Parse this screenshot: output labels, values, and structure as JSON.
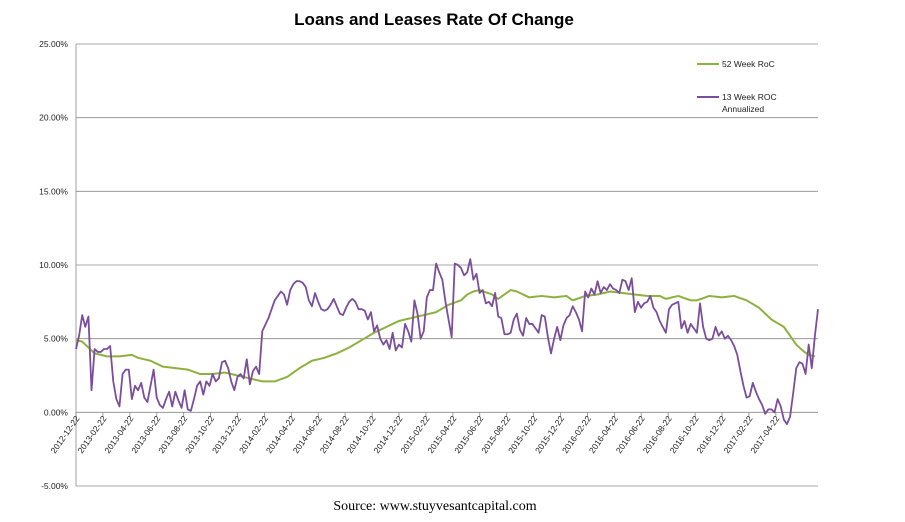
{
  "chart_data": {
    "type": "line",
    "title": "Loans and Leases Rate Of Change",
    "source": "Source: www.stuyvesantcapital.com",
    "xlabel": "",
    "ylabel": "",
    "ylim": [
      -5,
      25
    ],
    "y_ticks": [
      25,
      20,
      15,
      10,
      5,
      0,
      -5
    ],
    "y_tick_labels": [
      "25.00%",
      "20.00%",
      "15.00%",
      "10.00%",
      "5.00%",
      "0.00%",
      "-5.00%"
    ],
    "x_tick_labels": [
      "2012-12-22",
      "2013-02-22",
      "2013-04-22",
      "2013-06-22",
      "2013-08-22",
      "2013-10-22",
      "2013-12-22",
      "2014-02-22",
      "2014-04-22",
      "2014-06-22",
      "2014-08-22",
      "2014-10-22",
      "2014-12-22",
      "2015-02-22",
      "2015-04-22",
      "2015-06-22",
      "2015-08-22",
      "2015-10-22",
      "2015-12-22",
      "2016-02-22",
      "2016-04-22",
      "2016-06-22",
      "2016-08-22",
      "2016-10-22",
      "2016-12-22",
      "2017-02-22",
      "2017-04-22"
    ],
    "weeks": 239,
    "series": [
      {
        "name": "52 Week RoC",
        "color": "#8db13f",
        "keypoints": [
          [
            0,
            4.9
          ],
          [
            2,
            4.8
          ],
          [
            4,
            4.4
          ],
          [
            6,
            4.0
          ],
          [
            8,
            3.9
          ],
          [
            10,
            3.8
          ],
          [
            14,
            3.8
          ],
          [
            18,
            3.9
          ],
          [
            20,
            3.7
          ],
          [
            24,
            3.5
          ],
          [
            28,
            3.1
          ],
          [
            32,
            3.0
          ],
          [
            36,
            2.9
          ],
          [
            40,
            2.6
          ],
          [
            44,
            2.6
          ],
          [
            48,
            2.7
          ],
          [
            52,
            2.5
          ],
          [
            56,
            2.3
          ],
          [
            60,
            2.1
          ],
          [
            64,
            2.1
          ],
          [
            68,
            2.4
          ],
          [
            72,
            3.0
          ],
          [
            76,
            3.5
          ],
          [
            80,
            3.7
          ],
          [
            84,
            4.0
          ],
          [
            88,
            4.4
          ],
          [
            92,
            4.9
          ],
          [
            96,
            5.4
          ],
          [
            100,
            5.8
          ],
          [
            104,
            6.2
          ],
          [
            108,
            6.4
          ],
          [
            112,
            6.6
          ],
          [
            116,
            6.8
          ],
          [
            120,
            7.3
          ],
          [
            124,
            7.6
          ],
          [
            126,
            8.0
          ],
          [
            128,
            8.2
          ],
          [
            130,
            8.3
          ],
          [
            134,
            8.0
          ],
          [
            136,
            7.7
          ],
          [
            138,
            8.0
          ],
          [
            140,
            8.3
          ],
          [
            142,
            8.2
          ],
          [
            146,
            7.8
          ],
          [
            150,
            7.9
          ],
          [
            154,
            7.8
          ],
          [
            158,
            7.9
          ],
          [
            160,
            7.6
          ],
          [
            164,
            7.9
          ],
          [
            168,
            8.0
          ],
          [
            172,
            8.2
          ],
          [
            176,
            8.1
          ],
          [
            180,
            8.0
          ],
          [
            184,
            7.9
          ],
          [
            188,
            7.9
          ],
          [
            190,
            7.7
          ],
          [
            194,
            7.9
          ],
          [
            198,
            7.6
          ],
          [
            200,
            7.6
          ],
          [
            204,
            7.9
          ],
          [
            208,
            7.8
          ],
          [
            212,
            7.9
          ],
          [
            216,
            7.6
          ],
          [
            220,
            7.1
          ],
          [
            224,
            6.3
          ],
          [
            228,
            5.8
          ],
          [
            230,
            5.2
          ],
          [
            232,
            4.6
          ],
          [
            234,
            4.2
          ],
          [
            236,
            3.9
          ],
          [
            238,
            3.8
          ]
        ]
      },
      {
        "name": "13 Week ROC Annualized",
        "color": "#7b4e9c",
        "keypoints": [
          [
            0,
            4.3
          ],
          [
            1,
            5.2
          ],
          [
            2,
            6.6
          ],
          [
            3,
            5.8
          ],
          [
            4,
            6.5
          ],
          [
            5,
            1.5
          ],
          [
            6,
            4.3
          ],
          [
            7,
            4.1
          ],
          [
            8,
            4.1
          ],
          [
            9,
            4.3
          ],
          [
            10,
            4.3
          ],
          [
            11,
            4.5
          ],
          [
            12,
            2.1
          ],
          [
            13,
            0.9
          ],
          [
            14,
            0.4
          ],
          [
            15,
            2.6
          ],
          [
            16,
            2.9
          ],
          [
            17,
            2.9
          ],
          [
            18,
            0.9
          ],
          [
            19,
            1.8
          ],
          [
            20,
            1.5
          ],
          [
            21,
            2.0
          ],
          [
            22,
            1.0
          ],
          [
            23,
            0.7
          ],
          [
            24,
            1.8
          ],
          [
            25,
            2.9
          ],
          [
            26,
            1.0
          ],
          [
            27,
            0.5
          ],
          [
            28,
            0.3
          ],
          [
            29,
            0.9
          ],
          [
            30,
            1.4
          ],
          [
            31,
            0.4
          ],
          [
            32,
            1.4
          ],
          [
            33,
            0.8
          ],
          [
            34,
            0.3
          ],
          [
            35,
            1.5
          ],
          [
            36,
            0.2
          ],
          [
            37,
            0.1
          ],
          [
            38,
            0.9
          ],
          [
            39,
            1.8
          ],
          [
            40,
            2.1
          ],
          [
            41,
            1.2
          ],
          [
            42,
            2.1
          ],
          [
            43,
            1.8
          ],
          [
            44,
            2.6
          ],
          [
            45,
            2.1
          ],
          [
            46,
            2.3
          ],
          [
            47,
            3.4
          ],
          [
            48,
            3.5
          ],
          [
            49,
            3.0
          ],
          [
            50,
            2.1
          ],
          [
            51,
            1.5
          ],
          [
            52,
            2.4
          ],
          [
            53,
            2.6
          ],
          [
            54,
            2.3
          ],
          [
            55,
            3.6
          ],
          [
            56,
            1.9
          ],
          [
            57,
            2.8
          ],
          [
            58,
            3.1
          ],
          [
            59,
            2.6
          ],
          [
            60,
            5.5
          ],
          [
            62,
            6.4
          ],
          [
            64,
            7.6
          ],
          [
            66,
            8.2
          ],
          [
            67,
            8.0
          ],
          [
            68,
            7.3
          ],
          [
            69,
            8.3
          ],
          [
            70,
            8.7
          ],
          [
            71,
            8.9
          ],
          [
            72,
            8.9
          ],
          [
            73,
            8.8
          ],
          [
            74,
            8.5
          ],
          [
            75,
            7.6
          ],
          [
            76,
            7.2
          ],
          [
            77,
            8.1
          ],
          [
            78,
            7.5
          ],
          [
            79,
            7.0
          ],
          [
            80,
            6.9
          ],
          [
            81,
            7.0
          ],
          [
            82,
            7.3
          ],
          [
            83,
            7.7
          ],
          [
            84,
            7.2
          ],
          [
            85,
            6.7
          ],
          [
            86,
            6.6
          ],
          [
            87,
            7.1
          ],
          [
            88,
            7.5
          ],
          [
            89,
            7.7
          ],
          [
            90,
            7.5
          ],
          [
            91,
            7.0
          ],
          [
            92,
            7.0
          ],
          [
            93,
            6.9
          ],
          [
            94,
            6.3
          ],
          [
            95,
            6.8
          ],
          [
            96,
            5.5
          ],
          [
            97,
            5.9
          ],
          [
            98,
            5.0
          ],
          [
            99,
            4.6
          ],
          [
            100,
            4.9
          ],
          [
            101,
            4.3
          ],
          [
            102,
            5.4
          ],
          [
            103,
            4.2
          ],
          [
            104,
            4.6
          ],
          [
            105,
            4.4
          ],
          [
            106,
            6.0
          ],
          [
            107,
            5.5
          ],
          [
            108,
            4.8
          ],
          [
            109,
            7.6
          ],
          [
            110,
            6.7
          ],
          [
            111,
            5.0
          ],
          [
            112,
            5.5
          ],
          [
            113,
            7.8
          ],
          [
            114,
            8.3
          ],
          [
            115,
            8.3
          ],
          [
            116,
            10.1
          ],
          [
            117,
            9.5
          ],
          [
            118,
            9.0
          ],
          [
            119,
            7.5
          ],
          [
            120,
            6.3
          ],
          [
            121,
            5.1
          ],
          [
            122,
            10.1
          ],
          [
            123,
            10.0
          ],
          [
            124,
            9.8
          ],
          [
            125,
            9.3
          ],
          [
            126,
            9.5
          ],
          [
            127,
            10.4
          ],
          [
            128,
            9.0
          ],
          [
            129,
            9.4
          ],
          [
            130,
            8.1
          ],
          [
            131,
            8.3
          ],
          [
            132,
            7.4
          ],
          [
            133,
            7.5
          ],
          [
            134,
            7.2
          ],
          [
            135,
            8.1
          ],
          [
            136,
            6.5
          ],
          [
            137,
            6.4
          ],
          [
            138,
            5.3
          ],
          [
            139,
            5.3
          ],
          [
            140,
            5.4
          ],
          [
            141,
            6.3
          ],
          [
            142,
            6.7
          ],
          [
            143,
            5.6
          ],
          [
            144,
            5.2
          ],
          [
            145,
            6.4
          ],
          [
            146,
            6.0
          ],
          [
            147,
            6.0
          ],
          [
            148,
            5.7
          ],
          [
            149,
            5.4
          ],
          [
            150,
            6.6
          ],
          [
            151,
            6.5
          ],
          [
            152,
            5.1
          ],
          [
            153,
            4.0
          ],
          [
            154,
            5.0
          ],
          [
            155,
            5.8
          ],
          [
            156,
            4.9
          ],
          [
            157,
            5.9
          ],
          [
            158,
            6.4
          ],
          [
            159,
            6.6
          ],
          [
            160,
            7.2
          ],
          [
            161,
            6.8
          ],
          [
            162,
            6.3
          ],
          [
            163,
            5.5
          ],
          [
            164,
            8.2
          ],
          [
            165,
            7.8
          ],
          [
            166,
            8.4
          ],
          [
            167,
            8.0
          ],
          [
            168,
            8.9
          ],
          [
            169,
            8.1
          ],
          [
            170,
            8.5
          ],
          [
            171,
            8.3
          ],
          [
            172,
            8.7
          ],
          [
            173,
            8.4
          ],
          [
            174,
            8.3
          ],
          [
            175,
            8.1
          ],
          [
            176,
            9.0
          ],
          [
            177,
            8.9
          ],
          [
            178,
            8.3
          ],
          [
            179,
            9.1
          ],
          [
            180,
            6.8
          ],
          [
            181,
            7.5
          ],
          [
            182,
            7.1
          ],
          [
            183,
            7.4
          ],
          [
            184,
            7.5
          ],
          [
            185,
            7.9
          ],
          [
            186,
            7.1
          ],
          [
            187,
            6.8
          ],
          [
            188,
            6.2
          ],
          [
            189,
            5.8
          ],
          [
            190,
            5.4
          ],
          [
            191,
            7.0
          ],
          [
            192,
            7.3
          ],
          [
            193,
            7.4
          ],
          [
            194,
            7.5
          ],
          [
            195,
            5.7
          ],
          [
            196,
            6.2
          ],
          [
            197,
            5.4
          ],
          [
            198,
            6.0
          ],
          [
            199,
            5.7
          ],
          [
            200,
            5.4
          ],
          [
            201,
            7.4
          ],
          [
            202,
            5.8
          ],
          [
            203,
            5.0
          ],
          [
            204,
            4.9
          ],
          [
            205,
            5.0
          ],
          [
            206,
            5.8
          ],
          [
            207,
            5.2
          ],
          [
            208,
            5.5
          ],
          [
            209,
            5.0
          ],
          [
            210,
            5.2
          ],
          [
            211,
            4.9
          ],
          [
            212,
            4.5
          ],
          [
            213,
            3.9
          ],
          [
            214,
            2.8
          ],
          [
            215,
            1.8
          ],
          [
            216,
            1.0
          ],
          [
            217,
            1.1
          ],
          [
            218,
            2.0
          ],
          [
            219,
            1.4
          ],
          [
            220,
            0.9
          ],
          [
            221,
            0.5
          ],
          [
            222,
            -0.1
          ],
          [
            223,
            0.2
          ],
          [
            224,
            0.2
          ],
          [
            225,
            0.0
          ],
          [
            226,
            0.9
          ],
          [
            227,
            0.4
          ],
          [
            228,
            -0.5
          ],
          [
            229,
            -0.8
          ],
          [
            230,
            -0.3
          ],
          [
            231,
            1.3
          ],
          [
            232,
            3.0
          ],
          [
            233,
            3.4
          ],
          [
            234,
            3.3
          ],
          [
            235,
            2.6
          ],
          [
            236,
            4.6
          ],
          [
            237,
            3.0
          ],
          [
            238,
            5.2
          ],
          [
            239,
            7.0
          ]
        ]
      }
    ],
    "legend_position": "top-right",
    "grid": true
  }
}
